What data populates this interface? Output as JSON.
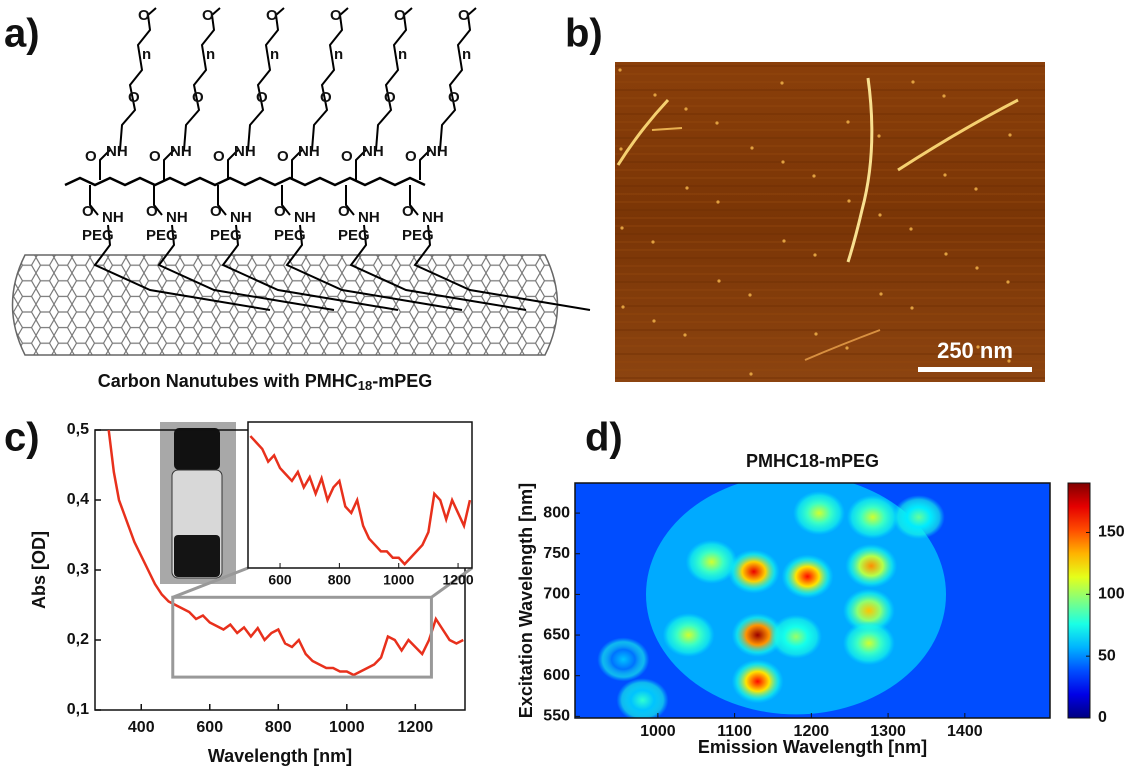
{
  "panels": {
    "a": {
      "label": "a)",
      "caption": [
        "Carbon Nanutubes with PMHC",
        "18",
        "-mPEG"
      ],
      "structure": {
        "methoxy": "O",
        "repeat": "n",
        "ether": "O",
        "amide": "NH",
        "carbonyl": "O",
        "peg": "PEG"
      }
    },
    "b": {
      "label": "b)",
      "scale_bar": "250 nm"
    },
    "c": {
      "label": "c)"
    },
    "d": {
      "label": "d)"
    }
  },
  "chart_data": [
    {
      "type": "line",
      "xlabel": "Wavelength [nm]",
      "ylabel": "Abs [OD]",
      "color": "#e8301c",
      "xlim": [
        265,
        1345
      ],
      "ylim": [
        0.1,
        0.5
      ],
      "xticks": [
        400,
        600,
        800,
        1000,
        1200
      ],
      "yticks": [
        {
          "value": 0.1,
          "label": "0,1"
        },
        {
          "value": 0.2,
          "label": "0,2"
        },
        {
          "value": 0.3,
          "label": "0,3"
        },
        {
          "value": 0.4,
          "label": "0,4"
        },
        {
          "value": 0.5,
          "label": "0,5"
        }
      ],
      "x": [
        305,
        320,
        335,
        350,
        365,
        380,
        400,
        420,
        440,
        460,
        480,
        500,
        520,
        540,
        560,
        580,
        600,
        620,
        640,
        660,
        680,
        700,
        720,
        740,
        760,
        780,
        800,
        820,
        840,
        860,
        880,
        900,
        920,
        940,
        960,
        980,
        1000,
        1020,
        1040,
        1060,
        1080,
        1100,
        1120,
        1140,
        1160,
        1180,
        1200,
        1220,
        1240,
        1260,
        1280,
        1300,
        1320,
        1340
      ],
      "values": [
        0.5,
        0.44,
        0.4,
        0.38,
        0.36,
        0.34,
        0.32,
        0.3,
        0.28,
        0.265,
        0.255,
        0.25,
        0.245,
        0.24,
        0.23,
        0.235,
        0.225,
        0.22,
        0.215,
        0.222,
        0.21,
        0.218,
        0.205,
        0.217,
        0.2,
        0.21,
        0.215,
        0.195,
        0.19,
        0.2,
        0.18,
        0.17,
        0.165,
        0.16,
        0.16,
        0.155,
        0.155,
        0.15,
        0.155,
        0.16,
        0.165,
        0.175,
        0.205,
        0.2,
        0.185,
        0.2,
        0.19,
        0.18,
        0.2,
        0.23,
        0.215,
        0.2,
        0.195,
        0.2
      ]
    },
    {
      "type": "inset",
      "xlim": [
        492,
        1247
      ],
      "ylim": [
        0.147,
        0.261
      ],
      "xticks": [
        600,
        800,
        1000,
        1200
      ]
    },
    {
      "type": "heatmap",
      "title": "PMHC18-mPEG",
      "xlabel": "Emission Wavelength [nm]",
      "ylabel": "Excitation Wavelength [nm]",
      "xlim": [
        892,
        1511
      ],
      "ylim": [
        548,
        837
      ],
      "xticks": [
        1000,
        1100,
        1200,
        1300,
        1400
      ],
      "yticks": [
        550,
        600,
        650,
        700,
        750,
        800
      ],
      "zlim": [
        0,
        190
      ],
      "zticks": [
        0,
        50,
        100,
        150
      ],
      "x": [
        1070,
        1125,
        1195,
        1278,
        1130,
        1130,
        1275,
        1275,
        1040,
        980,
        1210,
        1280,
        1340,
        955,
        1180
      ],
      "y": [
        740,
        728,
        722,
        735,
        650,
        593,
        680,
        640,
        650,
        570,
        800,
        795,
        795,
        620,
        648
      ],
      "values": [
        110,
        170,
        165,
        140,
        185,
        165,
        130,
        110,
        110,
        80,
        110,
        110,
        90,
        60,
        100
      ]
    }
  ]
}
